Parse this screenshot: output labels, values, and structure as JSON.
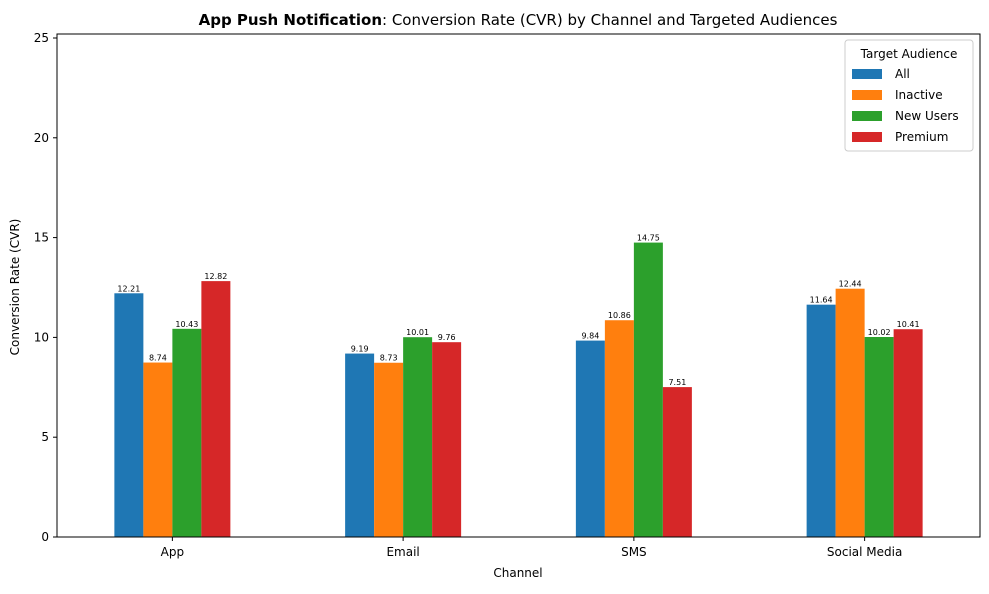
{
  "chart_data": {
    "type": "bar",
    "title_bold": "App Push Notification",
    "title_rest": ": Conversion Rate (CVR) by Channel and Targeted Audiences",
    "xlabel": "Channel",
    "ylabel": "Conversion Rate (CVR)",
    "ylim": [
      0,
      25.2
    ],
    "yticks": [
      0,
      5,
      10,
      15,
      20,
      25
    ],
    "grid": false,
    "legend_placement": "top-right",
    "legend_title": "Target Audience",
    "categories": [
      "App",
      "Email",
      "SMS",
      "Social Media"
    ],
    "series": [
      {
        "name": "All",
        "color": "#1f77b4",
        "values": [
          12.21,
          9.19,
          9.84,
          11.64
        ],
        "labels": [
          "12.21",
          "9.19",
          "9.84",
          "11.64"
        ]
      },
      {
        "name": "Inactive",
        "color": "#ff7f0e",
        "values": [
          8.74,
          8.73,
          10.86,
          12.44
        ],
        "labels": [
          "8.74",
          "8.73",
          "10.86",
          "12.44"
        ]
      },
      {
        "name": "New Users",
        "color": "#2ca02c",
        "values": [
          10.43,
          10.01,
          14.75,
          10.02
        ],
        "labels": [
          "10.43",
          "10.01",
          "14.75",
          "10.02"
        ]
      },
      {
        "name": "Premium",
        "color": "#d62728",
        "values": [
          12.82,
          9.76,
          7.51,
          10.41
        ],
        "labels": [
          "12.82",
          "9.76",
          "7.51",
          "10.41"
        ]
      }
    ]
  }
}
